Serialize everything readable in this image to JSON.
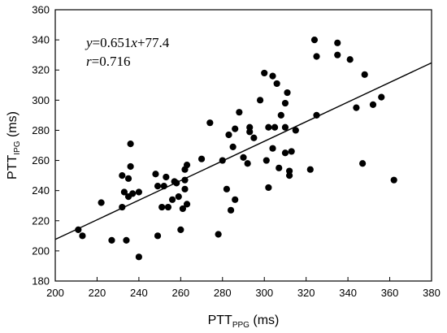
{
  "chart_data": {
    "type": "scatter",
    "title": "",
    "xlabel_main": "PTT",
    "xlabel_sub": "PPG",
    "xlabel_unit": " (ms)",
    "ylabel_main": "PTT",
    "ylabel_sub": "IPG",
    "ylabel_unit": " (ms)",
    "xlim": [
      200,
      380
    ],
    "ylim": [
      180,
      360
    ],
    "x_ticks": [
      200,
      220,
      240,
      260,
      280,
      300,
      320,
      340,
      360,
      380
    ],
    "y_ticks": [
      180,
      200,
      220,
      240,
      260,
      280,
      300,
      320,
      340,
      360
    ],
    "grid": false,
    "legend": "none",
    "annotation": {
      "eq_var_y": "y",
      "eq_mid1": "=0.651",
      "eq_var_x": "x",
      "eq_mid2": "+77.4",
      "r_var": "r",
      "r_value": "=0.716"
    },
    "regression": {
      "slope": 0.651,
      "intercept": 77.4,
      "x_range": [
        200,
        380
      ]
    },
    "points": [
      {
        "x": 211,
        "y": 214
      },
      {
        "x": 213,
        "y": 210
      },
      {
        "x": 222,
        "y": 232
      },
      {
        "x": 227,
        "y": 207
      },
      {
        "x": 232,
        "y": 250
      },
      {
        "x": 232,
        "y": 229
      },
      {
        "x": 233,
        "y": 239
      },
      {
        "x": 234,
        "y": 207
      },
      {
        "x": 235,
        "y": 236
      },
      {
        "x": 235,
        "y": 248
      },
      {
        "x": 236,
        "y": 271
      },
      {
        "x": 236,
        "y": 256
      },
      {
        "x": 237,
        "y": 238
      },
      {
        "x": 240,
        "y": 239
      },
      {
        "x": 240,
        "y": 196
      },
      {
        "x": 248,
        "y": 251
      },
      {
        "x": 249,
        "y": 243
      },
      {
        "x": 249,
        "y": 210
      },
      {
        "x": 251,
        "y": 229
      },
      {
        "x": 252,
        "y": 243
      },
      {
        "x": 253,
        "y": 249
      },
      {
        "x": 254,
        "y": 229
      },
      {
        "x": 256,
        "y": 234
      },
      {
        "x": 257,
        "y": 246
      },
      {
        "x": 258,
        "y": 245
      },
      {
        "x": 259,
        "y": 236
      },
      {
        "x": 260,
        "y": 214
      },
      {
        "x": 261,
        "y": 228
      },
      {
        "x": 262,
        "y": 247
      },
      {
        "x": 262,
        "y": 241
      },
      {
        "x": 262,
        "y": 254
      },
      {
        "x": 263,
        "y": 257
      },
      {
        "x": 263,
        "y": 231
      },
      {
        "x": 270,
        "y": 261
      },
      {
        "x": 274,
        "y": 285
      },
      {
        "x": 278,
        "y": 211
      },
      {
        "x": 280,
        "y": 260
      },
      {
        "x": 282,
        "y": 241
      },
      {
        "x": 283,
        "y": 277
      },
      {
        "x": 284,
        "y": 227
      },
      {
        "x": 285,
        "y": 269
      },
      {
        "x": 286,
        "y": 234
      },
      {
        "x": 286,
        "y": 281
      },
      {
        "x": 288,
        "y": 292
      },
      {
        "x": 290,
        "y": 262
      },
      {
        "x": 292,
        "y": 258
      },
      {
        "x": 293,
        "y": 282
      },
      {
        "x": 293,
        "y": 279
      },
      {
        "x": 295,
        "y": 275
      },
      {
        "x": 298,
        "y": 300
      },
      {
        "x": 300,
        "y": 318
      },
      {
        "x": 301,
        "y": 260
      },
      {
        "x": 302,
        "y": 282
      },
      {
        "x": 302,
        "y": 242
      },
      {
        "x": 304,
        "y": 316
      },
      {
        "x": 304,
        "y": 268
      },
      {
        "x": 305,
        "y": 282
      },
      {
        "x": 306,
        "y": 311
      },
      {
        "x": 307,
        "y": 255
      },
      {
        "x": 308,
        "y": 290
      },
      {
        "x": 310,
        "y": 298
      },
      {
        "x": 310,
        "y": 282
      },
      {
        "x": 310,
        "y": 265
      },
      {
        "x": 311,
        "y": 305
      },
      {
        "x": 312,
        "y": 253
      },
      {
        "x": 312,
        "y": 250
      },
      {
        "x": 313,
        "y": 266
      },
      {
        "x": 315,
        "y": 280
      },
      {
        "x": 322,
        "y": 254
      },
      {
        "x": 324,
        "y": 340
      },
      {
        "x": 325,
        "y": 329
      },
      {
        "x": 325,
        "y": 290
      },
      {
        "x": 335,
        "y": 338
      },
      {
        "x": 335,
        "y": 330
      },
      {
        "x": 341,
        "y": 327
      },
      {
        "x": 344,
        "y": 295
      },
      {
        "x": 347,
        "y": 258
      },
      {
        "x": 348,
        "y": 317
      },
      {
        "x": 352,
        "y": 297
      },
      {
        "x": 356,
        "y": 302
      },
      {
        "x": 362,
        "y": 247
      }
    ]
  }
}
